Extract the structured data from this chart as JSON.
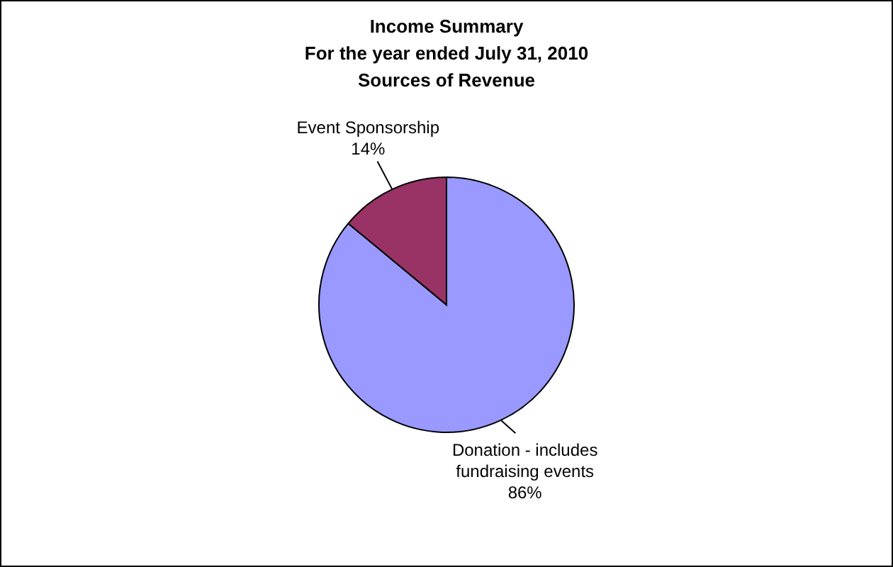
{
  "chart_data": {
    "type": "pie",
    "title": "Income Summary",
    "subtitle": "For the year ended July 31, 2010\nSources of Revenue",
    "categories": [
      "Donation - includes fundraising events",
      "Event Sponsorship"
    ],
    "values": [
      86,
      14
    ],
    "colors": [
      "#9999ff",
      "#993366"
    ],
    "value_labels": [
      "86%",
      "14%"
    ]
  }
}
